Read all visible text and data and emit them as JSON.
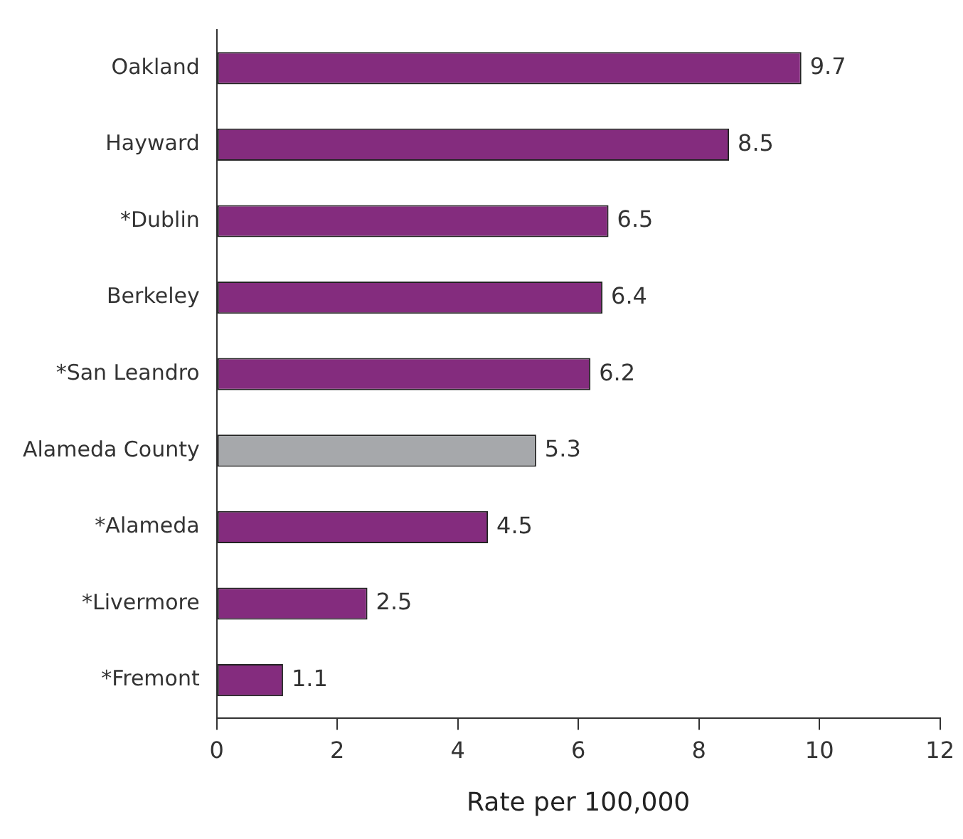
{
  "chart_data": {
    "type": "bar",
    "orientation": "horizontal",
    "xlabel": "Rate per 100,000",
    "categories": [
      "Oakland",
      "Hayward",
      "*Dublin",
      "Berkeley",
      "*San Leandro",
      "Alameda County",
      "*Alameda",
      "*Livermore",
      "*Fremont"
    ],
    "values": [
      9.7,
      8.5,
      6.5,
      6.4,
      6.2,
      5.3,
      4.5,
      2.5,
      1.1
    ],
    "colors": [
      "#842c7e",
      "#842c7e",
      "#842c7e",
      "#842c7e",
      "#842c7e",
      "#a6a8ab",
      "#842c7e",
      "#842c7e",
      "#842c7e"
    ],
    "xlim": [
      0,
      12
    ],
    "xticks": [
      0,
      2,
      4,
      6,
      8,
      10,
      12
    ],
    "data_labels": true,
    "grid": false,
    "legend": false
  }
}
